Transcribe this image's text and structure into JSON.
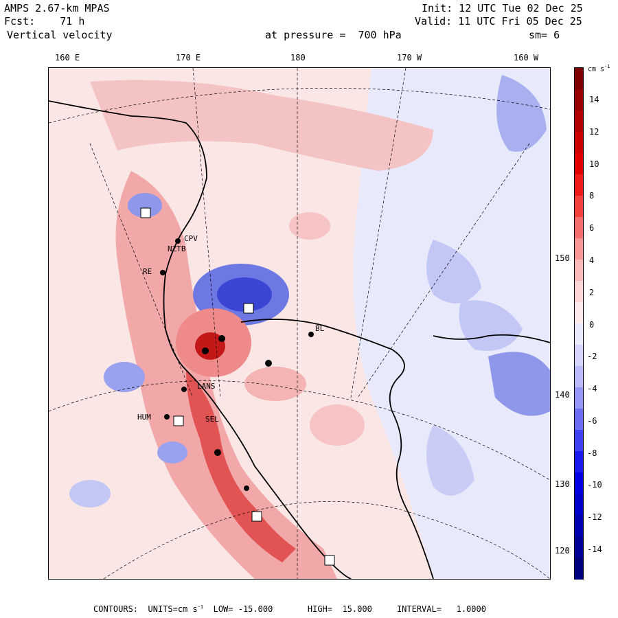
{
  "header": {
    "line1_left": "AMPS 2.67-km MPAS",
    "line2_left": "Fcst:    71 h",
    "line3_left": "Vertical velocity",
    "pressure": "at pressure =  700 hPa",
    "init": "Init: 12 UTC Tue 02 Dec 25",
    "valid": "Valid: 11 UTC Fri 05 Dec 25",
    "smooth": "sm= 6"
  },
  "longitude_labels": [
    "160 E",
    "170 E",
    "180",
    "170 W",
    "160 W"
  ],
  "latitude_labels": [
    "150 W",
    "140 W",
    "130 W",
    "120 W"
  ],
  "station_labels": [
    "CPV",
    "NZTB",
    "RE",
    "LANS",
    "HUM",
    "SEL",
    "BL"
  ],
  "colorbar": {
    "units": "cm s",
    "units_exp": "-1",
    "ticks": [
      "14",
      "12",
      "10",
      "8",
      "6",
      "4",
      "2",
      "0",
      "-2",
      "-4",
      "-6",
      "-8",
      "-10",
      "-12",
      "-14"
    ],
    "colors": [
      "#7f0000",
      "#990000",
      "#b30000",
      "#cc0000",
      "#e00000",
      "#f01a1a",
      "#f54040",
      "#f56e6e",
      "#f79696",
      "#f9baba",
      "#fcd6d6",
      "#fdeaea",
      "#eaeafd",
      "#d6d6fc",
      "#babaf9",
      "#9696f7",
      "#6e6ef5",
      "#4040f5",
      "#1a1af0",
      "#0000e0",
      "#0000cc",
      "#0000b3",
      "#000099",
      "#00007f"
    ]
  },
  "footer": {
    "text": "CONTOURS:  UNITS=cm s",
    "exp": "-1",
    "rest": "  LOW= -15.000       HIGH=  15.000     INTERVAL=   1.0000"
  },
  "colors": {
    "positive": "#f4b4b4",
    "negative": "#aeb4f2",
    "background_pos": "#fbe4e4",
    "background_neg": "#e6e8fb"
  }
}
